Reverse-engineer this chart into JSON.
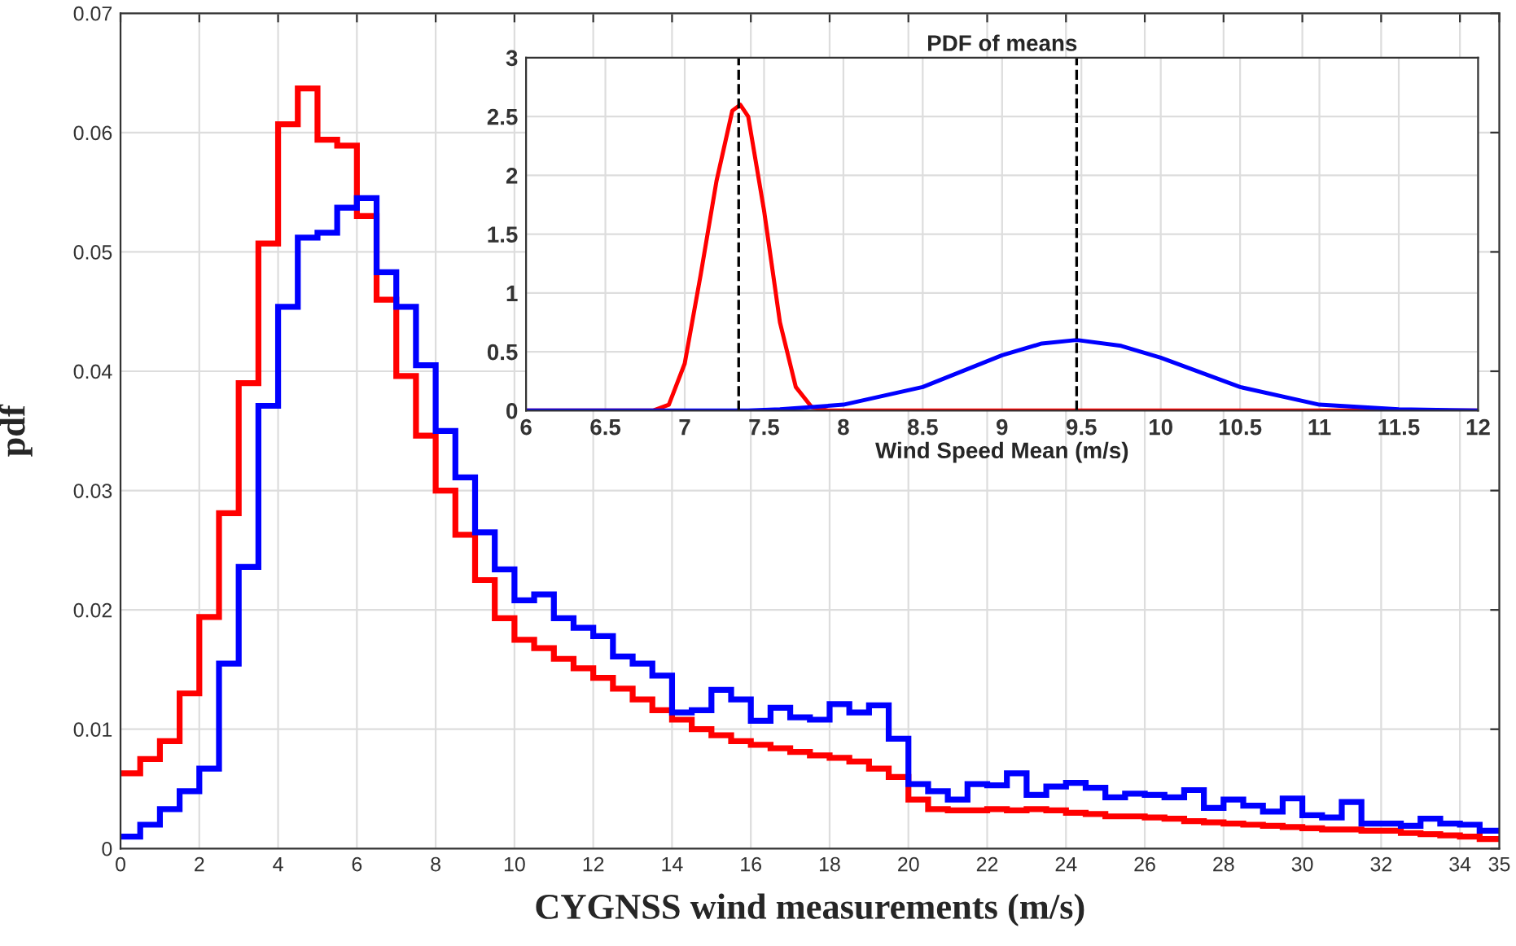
{
  "chart_data": [
    {
      "type": "histogram",
      "xlabel": "CYGNSS wind measurements (m/s)",
      "ylabel": "pdf",
      "bins": [
        0,
        0.5,
        1,
        1.5,
        2,
        2.5,
        3,
        3.5,
        4,
        4.5,
        5,
        5.5,
        6,
        6.5,
        7,
        7.5,
        8,
        8.5,
        9,
        9.5,
        10,
        10.5,
        11,
        11.5,
        12,
        12.5,
        13,
        13.5,
        14,
        14.5,
        15,
        15.5,
        16,
        16.5,
        17,
        17.5,
        18,
        18.5,
        19,
        19.5,
        20,
        20.5,
        21,
        21.5,
        22,
        22.5,
        23,
        23.5,
        24,
        24.5,
        25,
        25.5,
        26,
        26.5,
        27,
        27.5,
        28,
        28.5,
        29,
        29.5,
        30,
        30.5,
        31,
        31.5,
        32,
        32.5,
        33,
        33.5,
        34,
        34.5,
        35
      ],
      "series": [
        {
          "color": "#ff0000",
          "values": [
            0.0063,
            0.0075,
            0.009,
            0.013,
            0.0194,
            0.0281,
            0.039,
            0.0507,
            0.0607,
            0.0637,
            0.0594,
            0.0589,
            0.053,
            0.046,
            0.0396,
            0.0346,
            0.03,
            0.0263,
            0.0225,
            0.0193,
            0.0175,
            0.0168,
            0.0159,
            0.0151,
            0.0143,
            0.0134,
            0.0125,
            0.0116,
            0.0108,
            0.01,
            0.0095,
            0.009,
            0.0087,
            0.0084,
            0.0081,
            0.0078,
            0.0076,
            0.0073,
            0.0067,
            0.006,
            0.0041,
            0.0033,
            0.0032,
            0.0032,
            0.0033,
            0.0032,
            0.0033,
            0.0032,
            0.003,
            0.0029,
            0.0027,
            0.0027,
            0.0026,
            0.0025,
            0.0023,
            0.0022,
            0.0021,
            0.002,
            0.0019,
            0.0018,
            0.0017,
            0.0016,
            0.0016,
            0.0015,
            0.0015,
            0.0013,
            0.0012,
            0.0011,
            0.001,
            0.0008
          ]
        },
        {
          "color": "#0000ff",
          "values": [
            0.001,
            0.002,
            0.0033,
            0.0048,
            0.0067,
            0.0155,
            0.0236,
            0.0371,
            0.0454,
            0.0512,
            0.0516,
            0.0537,
            0.0545,
            0.0483,
            0.0454,
            0.0405,
            0.035,
            0.0311,
            0.0265,
            0.0234,
            0.0208,
            0.0213,
            0.0193,
            0.0185,
            0.0178,
            0.0161,
            0.0155,
            0.0145,
            0.0114,
            0.0116,
            0.0133,
            0.0125,
            0.0107,
            0.0118,
            0.011,
            0.0108,
            0.0121,
            0.0114,
            0.012,
            0.0092,
            0.0054,
            0.0048,
            0.0041,
            0.0054,
            0.0053,
            0.0063,
            0.0045,
            0.0052,
            0.0055,
            0.0051,
            0.0043,
            0.0046,
            0.0045,
            0.0043,
            0.0049,
            0.0034,
            0.0041,
            0.0036,
            0.0031,
            0.0042,
            0.0028,
            0.0026,
            0.0039,
            0.0021,
            0.0021,
            0.0019,
            0.0025,
            0.0021,
            0.002,
            0.0015
          ]
        }
      ],
      "xlim": [
        0,
        35
      ],
      "xticks": [
        0,
        2,
        4,
        6,
        8,
        10,
        12,
        14,
        16,
        18,
        20,
        22,
        24,
        26,
        28,
        30,
        32,
        34,
        35
      ],
      "ylim": [
        0,
        0.07
      ],
      "yticks": [
        0,
        0.01,
        0.02,
        0.03,
        0.04,
        0.05,
        0.06,
        0.07
      ],
      "grid": true
    },
    {
      "type": "line",
      "title": "PDF of means",
      "xlabel": "Wind Speed Mean (m/s)",
      "series": [
        {
          "color": "#ff0000",
          "x": [
            6,
            6.8,
            6.9,
            7.0,
            7.1,
            7.2,
            7.3,
            7.35,
            7.4,
            7.5,
            7.6,
            7.7,
            7.8,
            7.9,
            12
          ],
          "values": [
            0,
            0,
            0.05,
            0.4,
            1.15,
            1.95,
            2.55,
            2.6,
            2.5,
            1.7,
            0.75,
            0.2,
            0.03,
            0,
            0
          ]
        },
        {
          "color": "#0000ff",
          "x": [
            6,
            7.4,
            7.6,
            8.0,
            8.5,
            9.0,
            9.25,
            9.47,
            9.75,
            10,
            10.5,
            11,
            11.5,
            12
          ],
          "values": [
            0,
            0,
            0.01,
            0.05,
            0.2,
            0.47,
            0.57,
            0.6,
            0.55,
            0.45,
            0.2,
            0.05,
            0.01,
            0
          ]
        }
      ],
      "xlim": [
        6,
        12
      ],
      "xticks": [
        6,
        6.5,
        7,
        7.5,
        8,
        8.5,
        9,
        9.5,
        10,
        10.5,
        11,
        11.5,
        12
      ],
      "ylim": [
        0,
        3
      ],
      "yticks": [
        0,
        0.5,
        1,
        1.5,
        2,
        2.5,
        3
      ],
      "grid": true,
      "ref_lines": [
        {
          "axis": "x",
          "value": 7.34,
          "color": "#000000",
          "line_style": "dashed"
        },
        {
          "axis": "x",
          "value": 9.47,
          "color": "#000000",
          "line_style": "dashed"
        }
      ]
    }
  ]
}
